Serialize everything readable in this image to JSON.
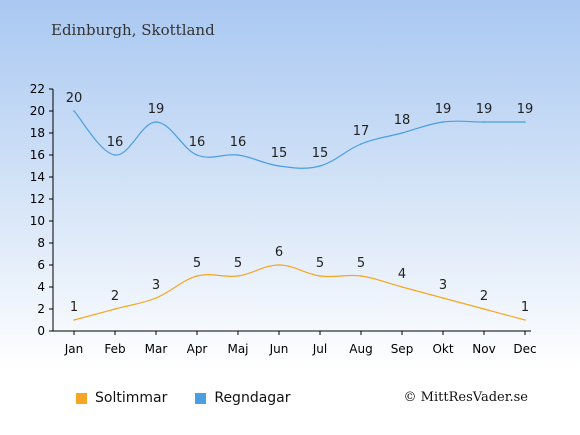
{
  "title": "Edinburgh, Skottland",
  "credit": "© MittResVader.se",
  "colors": {
    "sun": "#f5a623",
    "rain": "#4a9fe0"
  },
  "legend": {
    "sun_label": "Soltimmar",
    "rain_label": "Regndagar"
  },
  "chart_data": {
    "type": "line",
    "title": "Edinburgh, Skottland",
    "categories": [
      "Jan",
      "Feb",
      "Mar",
      "Apr",
      "Maj",
      "Jun",
      "Jul",
      "Aug",
      "Sep",
      "Okt",
      "Nov",
      "Dec"
    ],
    "series": [
      {
        "name": "Soltimmar",
        "values": [
          1,
          2,
          3,
          5,
          5,
          6,
          5,
          5,
          4,
          3,
          2,
          1
        ]
      },
      {
        "name": "Regndagar",
        "values": [
          20,
          16,
          19,
          16,
          16,
          15,
          15,
          17,
          18,
          19,
          19,
          19
        ]
      }
    ],
    "ylim": [
      0,
      22
    ],
    "yticks": [
      0,
      2,
      4,
      6,
      8,
      10,
      12,
      14,
      16,
      18,
      20,
      22
    ],
    "grid": false,
    "legend_position": "bottom"
  }
}
